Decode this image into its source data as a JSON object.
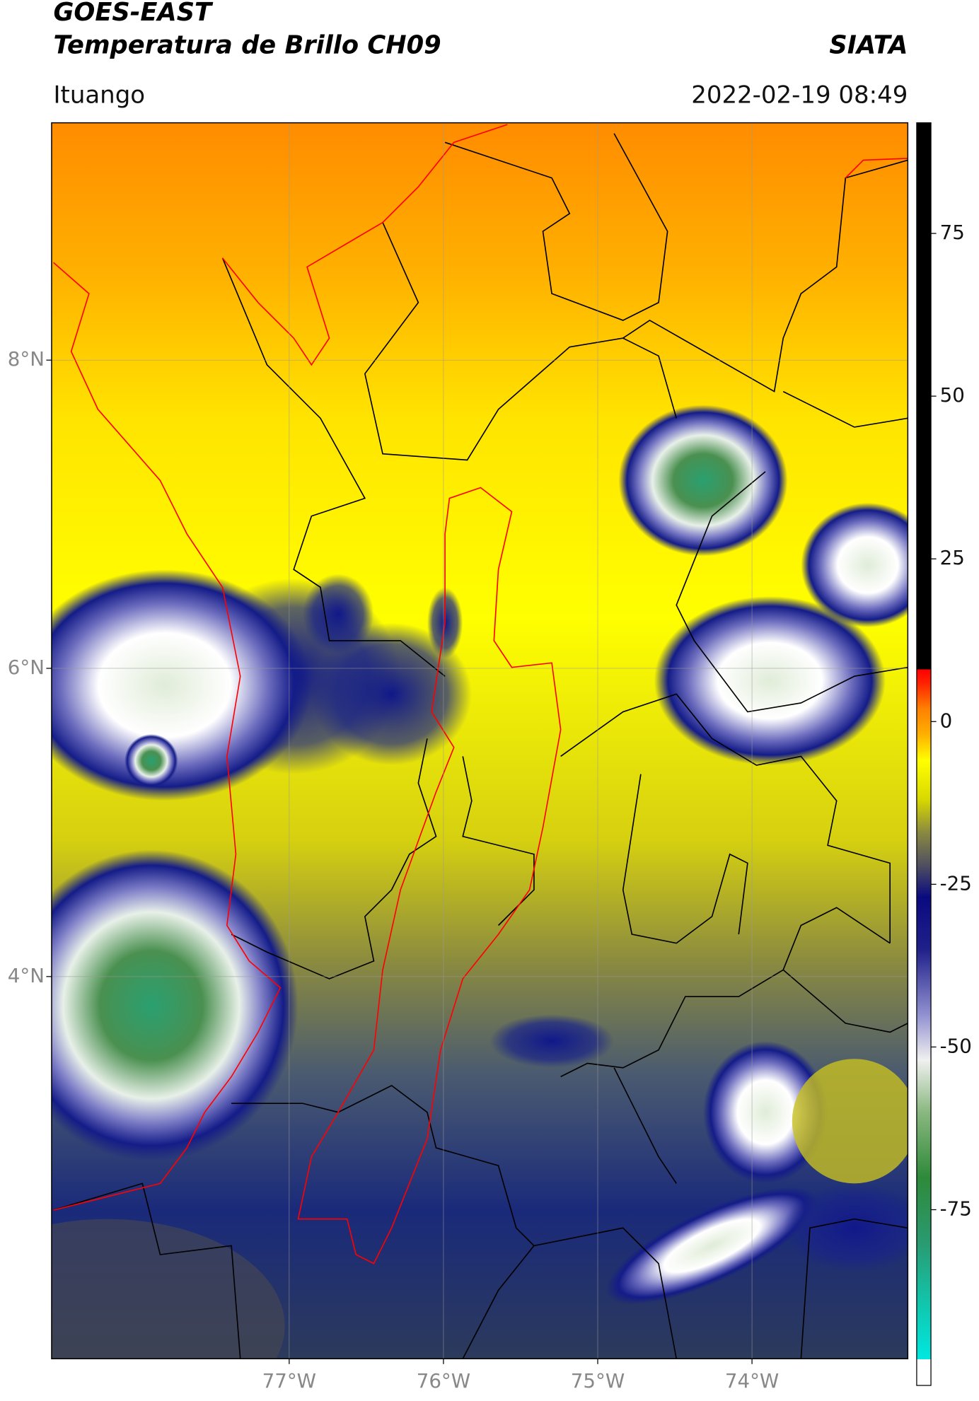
{
  "chart_data": {
    "type": "map",
    "title": "GOES-EAST",
    "subtitle": "Temperatura de Brillo CH09",
    "source": "SIATA",
    "location": "Ituango",
    "datetime": "2022-02-19 08:49",
    "xlim": [
      -78.54,
      -72.99
    ],
    "ylim": [
      1.52,
      9.54
    ],
    "xticks": [
      {
        "value": -77,
        "label": "77°W"
      },
      {
        "value": -76,
        "label": "76°W"
      },
      {
        "value": -75,
        "label": "75°W"
      },
      {
        "value": -74,
        "label": "74°W"
      }
    ],
    "yticks": [
      {
        "value": 4,
        "label": "4°N"
      },
      {
        "value": 6,
        "label": "6°N"
      },
      {
        "value": 8,
        "label": "8°N"
      }
    ],
    "grid": true,
    "colorbar": {
      "lim": [
        -102,
        92
      ],
      "ticks": [
        -75,
        -50,
        -25,
        0,
        25,
        50,
        75
      ],
      "stops": [
        {
          "value": -102,
          "color": "#ffffff"
        },
        {
          "value": -98,
          "color": "#ffffff"
        },
        {
          "value": -98,
          "color": "#00e8e0"
        },
        {
          "value": -90,
          "color": "#10c8b0"
        },
        {
          "value": -80,
          "color": "#2a9a70"
        },
        {
          "value": -70,
          "color": "#2e8a3a"
        },
        {
          "value": -60,
          "color": "#8ab880"
        },
        {
          "value": -52,
          "color": "#f0f0f0"
        },
        {
          "value": -45,
          "color": "#9090d0"
        },
        {
          "value": -35,
          "color": "#20208a"
        },
        {
          "value": -27,
          "color": "#0a0a80"
        },
        {
          "value": -22,
          "color": "#505060"
        },
        {
          "value": -17,
          "color": "#8a8a40"
        },
        {
          "value": -12,
          "color": "#d8d800"
        },
        {
          "value": -6,
          "color": "#ffff00"
        },
        {
          "value": -2,
          "color": "#ffb000"
        },
        {
          "value": 2,
          "color": "#ff8000"
        },
        {
          "value": 6,
          "color": "#ff2000"
        },
        {
          "value": 8,
          "color": "#ff0000"
        },
        {
          "value": 8,
          "color": "#000000"
        },
        {
          "value": 92,
          "color": "#000000"
        }
      ]
    }
  }
}
